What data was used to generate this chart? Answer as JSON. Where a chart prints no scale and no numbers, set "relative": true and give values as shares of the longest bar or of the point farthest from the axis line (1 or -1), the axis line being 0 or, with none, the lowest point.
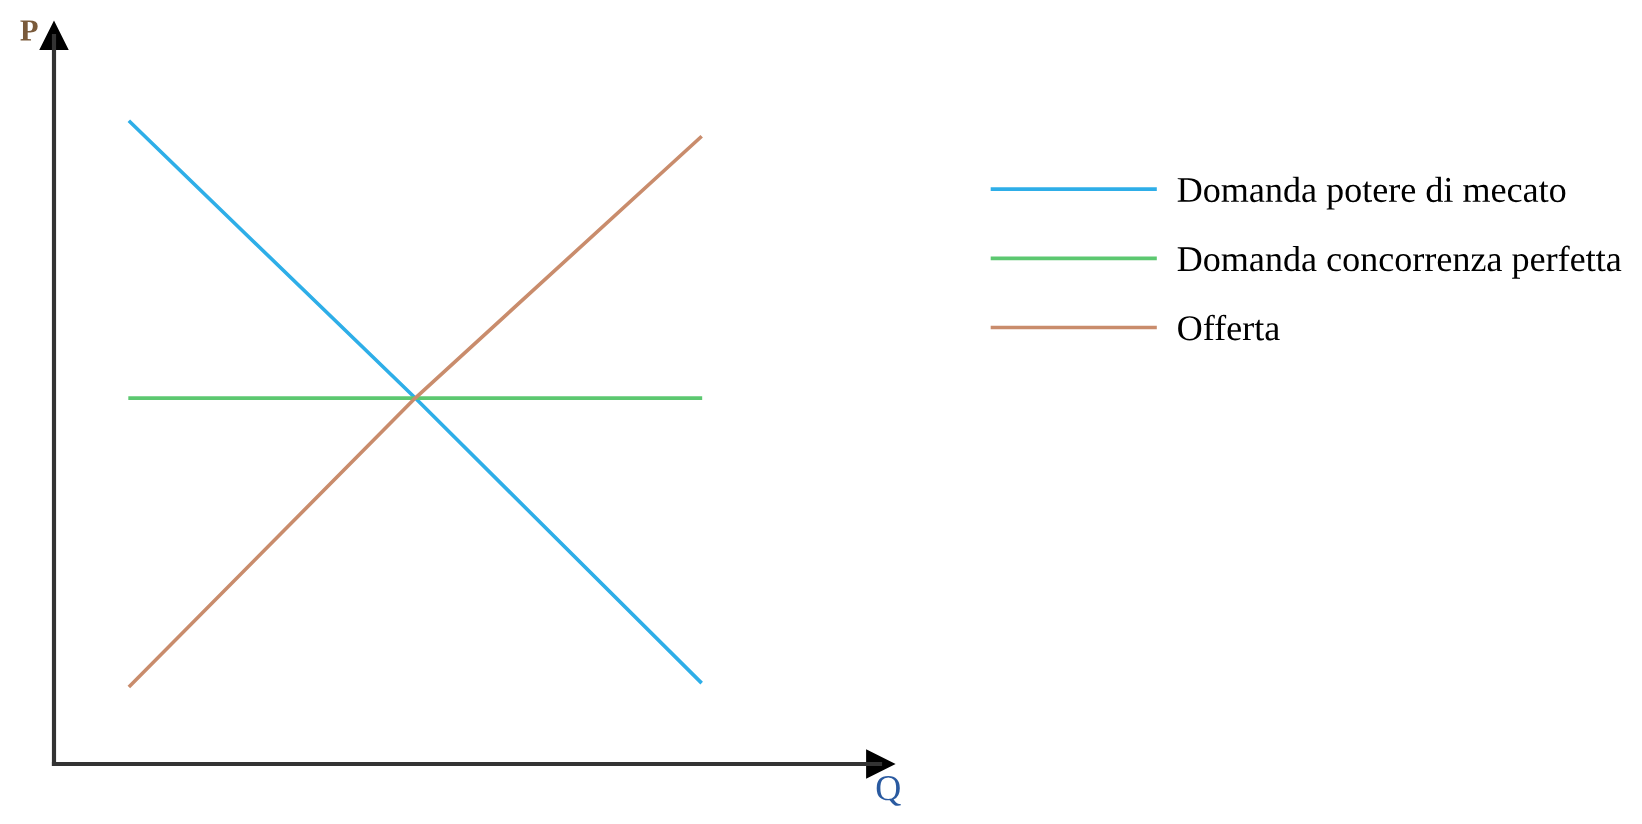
{
  "chart_data": {
    "type": "line",
    "relative": true,
    "xlabel": "Q",
    "ylabel": "P",
    "categories": [
      null,
      null,
      null
    ],
    "series": [
      {
        "name": "Domanda potere di mecato",
        "color": "#2eaee8",
        "values": [
          1,
          0.57,
          0.128
        ]
      },
      {
        "name": "Domanda concorrenza perfetta",
        "color": "#5cc870",
        "values": [
          0.57,
          0.57,
          0.57
        ]
      },
      {
        "name": "Offerta",
        "color": "#c98c6c",
        "values": [
          0.122,
          0.57,
          0.976
        ]
      }
    ],
    "legend": "right",
    "marker": "none",
    "line_style": "solid"
  }
}
